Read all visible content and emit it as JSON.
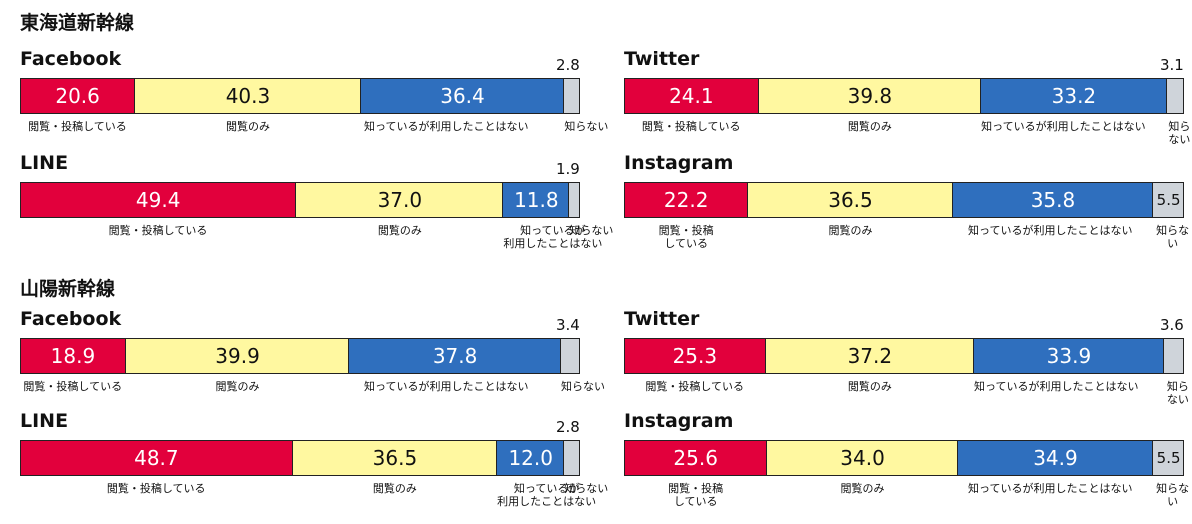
{
  "sections": [
    "東海道新幹線",
    "山陽新幹線"
  ],
  "chart_data": [
    {
      "type": "stacked_bar",
      "title": "Facebook",
      "categories": [
        "閲覧・投稿している",
        "閲覧のみ",
        "知っているが利用したことはない",
        "知らない"
      ],
      "values": [
        20.6,
        40.3,
        36.4,
        2.8
      ],
      "value_labels": [
        "20.6",
        "40.3",
        "36.4",
        "2.8"
      ],
      "colors": [
        "#e2003c",
        "#fff8a0",
        "#2f6fbe",
        "#cfd4da"
      ]
    },
    {
      "type": "stacked_bar",
      "title": "Twitter",
      "categories": [
        "閲覧・投稿している",
        "閲覧のみ",
        "知っているが利用したことはない",
        "知らない"
      ],
      "values": [
        24.1,
        39.8,
        33.2,
        3.1
      ],
      "value_labels": [
        "24.1",
        "39.8",
        "33.2",
        "3.1"
      ],
      "colors": [
        "#e2003c",
        "#fff8a0",
        "#2f6fbe",
        "#cfd4da"
      ]
    },
    {
      "type": "stacked_bar",
      "title": "LINE",
      "categories": [
        "閲覧・投稿している",
        "閲覧のみ",
        "知っているが\n利用したことはない",
        "知らない"
      ],
      "values": [
        49.4,
        37.0,
        11.8,
        1.9
      ],
      "value_labels": [
        "49.4",
        "37.0",
        "11.8",
        "1.9"
      ],
      "colors": [
        "#e2003c",
        "#fff8a0",
        "#2f6fbe",
        "#cfd4da"
      ]
    },
    {
      "type": "stacked_bar",
      "title": "Instagram",
      "categories": [
        "閲覧・投稿\nしている",
        "閲覧のみ",
        "知っているが利用したことはない",
        "知らない"
      ],
      "values": [
        22.2,
        36.5,
        35.8,
        5.5
      ],
      "value_labels": [
        "22.2",
        "36.5",
        "35.8",
        "5.5"
      ],
      "colors": [
        "#e2003c",
        "#fff8a0",
        "#2f6fbe",
        "#cfd4da"
      ]
    },
    {
      "type": "stacked_bar",
      "title": "Facebook",
      "categories": [
        "閲覧・投稿している",
        "閲覧のみ",
        "知っているが利用したことはない",
        "知らない"
      ],
      "values": [
        18.9,
        39.9,
        37.8,
        3.4
      ],
      "value_labels": [
        "18.9",
        "39.9",
        "37.8",
        "3.4"
      ],
      "colors": [
        "#e2003c",
        "#fff8a0",
        "#2f6fbe",
        "#cfd4da"
      ]
    },
    {
      "type": "stacked_bar",
      "title": "Twitter",
      "categories": [
        "閲覧・投稿している",
        "閲覧のみ",
        "知っているが利用したことはない",
        "知らない"
      ],
      "values": [
        25.3,
        37.2,
        33.9,
        3.6
      ],
      "value_labels": [
        "25.3",
        "37.2",
        "33.9",
        "3.6"
      ],
      "colors": [
        "#e2003c",
        "#fff8a0",
        "#2f6fbe",
        "#cfd4da"
      ]
    },
    {
      "type": "stacked_bar",
      "title": "LINE",
      "categories": [
        "閲覧・投稿している",
        "閲覧のみ",
        "知っているが\n利用したことはない",
        "知らない"
      ],
      "values": [
        48.7,
        36.5,
        12.0,
        2.8
      ],
      "value_labels": [
        "48.7",
        "36.5",
        "12.0",
        "2.8"
      ],
      "colors": [
        "#e2003c",
        "#fff8a0",
        "#2f6fbe",
        "#cfd4da"
      ]
    },
    {
      "type": "stacked_bar",
      "title": "Instagram",
      "categories": [
        "閲覧・投稿\nしている",
        "閲覧のみ",
        "知っているが利用したことはない",
        "知らない"
      ],
      "values": [
        25.6,
        34.0,
        34.9,
        5.5
      ],
      "value_labels": [
        "25.6",
        "34.0",
        "34.9",
        "5.5"
      ],
      "colors": [
        "#e2003c",
        "#fff8a0",
        "#2f6fbe",
        "#cfd4da"
      ]
    }
  ]
}
